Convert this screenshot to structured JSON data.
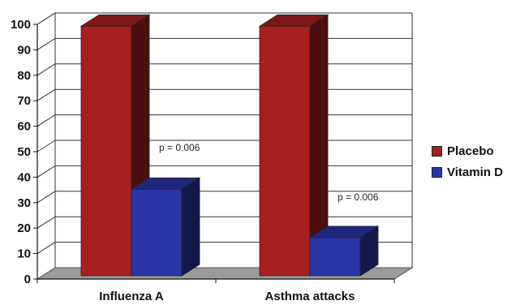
{
  "chart_data": {
    "type": "bar",
    "style": "3d-clustered-column",
    "categories": [
      "Influenza A",
      "Asthma attacks"
    ],
    "series": [
      {
        "name": "Placebo",
        "color": "#a81e1e",
        "values": [
          98,
          98
        ]
      },
      {
        "name": "Vitamin D",
        "color": "#2a35a8",
        "values": [
          34,
          15
        ]
      }
    ],
    "ylim": [
      0,
      100
    ],
    "yticks": [
      0,
      10,
      20,
      30,
      40,
      50,
      60,
      70,
      80,
      90,
      100
    ],
    "grid": true,
    "legend_position": "right",
    "annotations": [
      "p = 0.006",
      "p = 0.006"
    ]
  }
}
